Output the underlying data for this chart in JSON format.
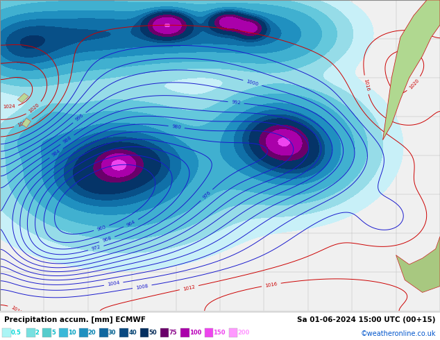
{
  "title_line1": "Precipitation accum. [mm] ECMWF",
  "title_date": "Sa 01-06-2024 15:00 UTC (00+15)",
  "colorbar_values": [
    0.5,
    2,
    5,
    10,
    20,
    30,
    40,
    50,
    75,
    100,
    150,
    200
  ],
  "colorbar_labels": [
    "0.5",
    "2",
    "5",
    "10",
    "20",
    "30",
    "40",
    "50",
    "75",
    "100",
    "150",
    "200"
  ],
  "watermark": "©weatheronline.co.uk",
  "fig_width": 6.34,
  "fig_height": 4.9,
  "dpi": 100,
  "map_bg": "#f0f0f0",
  "contour_color_blue": "#1a1acd",
  "contour_color_red": "#cc0000",
  "colorbar_swatch_colors": [
    "#aaf5f5",
    "#78e0e0",
    "#55cccc",
    "#3ab8d8",
    "#1e90c0",
    "#1068a0",
    "#084880",
    "#053060",
    "#6a006a",
    "#aa00aa",
    "#ee44ee",
    "#ff99ff"
  ],
  "colorbar_label_color": "#00aacc",
  "land_color": "#b0d890",
  "land_edge_color": "#cc2222",
  "bottom_bg": "#ffffff",
  "bottom_text_color": "#000000",
  "watermark_color": "#0055cc"
}
